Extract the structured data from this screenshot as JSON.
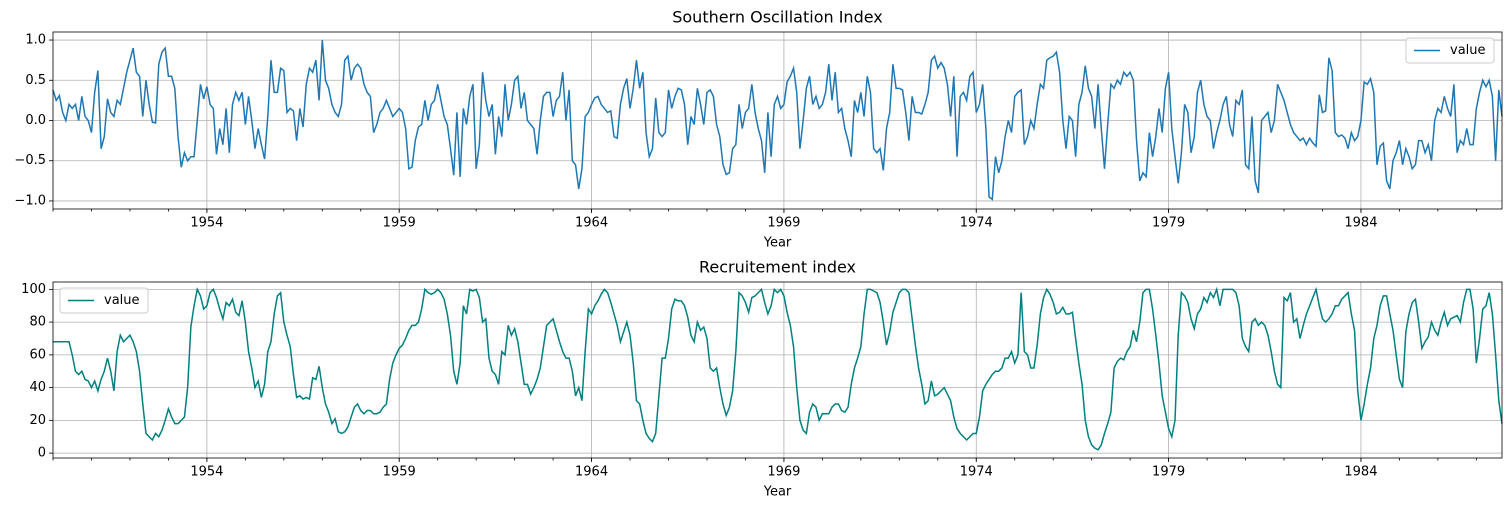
{
  "chart_data": [
    {
      "type": "line",
      "title": "Southern Oscillation Index",
      "xlabel": "Year",
      "xlim": [
        "1950-01",
        "1987-09"
      ],
      "xticks": [
        1954,
        1959,
        1964,
        1969,
        1974,
        1979,
        1984
      ],
      "ylim": [
        -1.1,
        1.1
      ],
      "yticks": [
        {
          "value": -1,
          "label": "−1.0"
        },
        {
          "value": -0.5,
          "label": "−0.5"
        },
        {
          "value": 0,
          "label": "0.0"
        },
        {
          "value": 0.5,
          "label": "0.5"
        },
        {
          "value": 1,
          "label": "1.0"
        }
      ],
      "grid": true,
      "legend": "upper right",
      "series": [
        {
          "name": "value",
          "color": "#1f77b4",
          "values": [
            0.38,
            0.25,
            0.31,
            0.1,
            0.0,
            0.2,
            0.15,
            0.2,
            0.0,
            0.3,
            0.05,
            0.0,
            -0.15,
            0.35,
            0.62,
            -0.35,
            -0.2,
            0.27,
            0.1,
            0.05,
            0.25,
            0.2,
            0.4,
            0.6,
            0.75,
            0.9,
            0.6,
            0.55,
            0.05,
            0.5,
            0.2,
            -0.02,
            -0.03,
            0.7,
            0.85,
            0.9,
            0.55,
            0.55,
            0.4,
            -0.2,
            -0.58,
            -0.4,
            -0.5,
            -0.45,
            -0.45,
            0.0,
            0.45,
            0.27,
            0.42,
            0.2,
            0.15,
            -0.42,
            -0.1,
            -0.3,
            0.15,
            -0.4,
            0.2,
            0.35,
            0.25,
            0.35,
            -0.05,
            0.3,
            0.0,
            -0.35,
            -0.1,
            -0.3,
            -0.48,
            0.05,
            0.75,
            0.35,
            0.35,
            0.65,
            0.62,
            0.1,
            0.15,
            0.12,
            -0.25,
            0.15,
            -0.08,
            0.45,
            0.65,
            0.6,
            0.75,
            0.25,
            1.0,
            0.5,
            0.4,
            0.2,
            0.1,
            0.05,
            0.2,
            0.75,
            0.8,
            0.5,
            0.65,
            0.7,
            0.65,
            0.45,
            0.35,
            0.3,
            -0.15,
            -0.05,
            0.1,
            0.15,
            0.25,
            0.15,
            0.05,
            0.1,
            0.15,
            0.1,
            -0.1,
            -0.6,
            -0.58,
            -0.25,
            -0.08,
            -0.05,
            0.25,
            0.0,
            0.2,
            0.25,
            0.45,
            0.25,
            0.05,
            -0.05,
            -0.35,
            -0.68,
            0.1,
            -0.7,
            0.15,
            -0.05,
            0.3,
            0.45,
            -0.6,
            -0.3,
            0.6,
            0.25,
            0.05,
            0.2,
            -0.42,
            0.05,
            -0.2,
            0.45,
            0.0,
            0.2,
            0.5,
            0.55,
            0.15,
            0.35,
            0.0,
            -0.05,
            -0.1,
            -0.42,
            0.0,
            0.3,
            0.35,
            0.35,
            0.05,
            0.25,
            0.3,
            0.6,
            0.0,
            0.38,
            -0.5,
            -0.55,
            -0.85,
            -0.6,
            0.05,
            0.1,
            0.2,
            0.28,
            0.3,
            0.2,
            0.15,
            0.1,
            0.12,
            -0.2,
            -0.22,
            0.2,
            0.4,
            0.52,
            0.15,
            0.4,
            0.75,
            0.4,
            0.6,
            -0.15,
            -0.45,
            -0.35,
            0.28,
            -0.15,
            -0.2,
            -0.15,
            0.38,
            0.15,
            0.3,
            0.4,
            0.38,
            0.2,
            -0.3,
            0.05,
            -0.05,
            0.4,
            0.2,
            -0.05,
            0.35,
            0.38,
            0.3,
            -0.05,
            -0.2,
            -0.55,
            -0.67,
            -0.65,
            -0.35,
            -0.3,
            0.2,
            -0.1,
            0.1,
            0.15,
            0.45,
            0.1,
            -0.1,
            -0.25,
            -0.65,
            0.1,
            -0.45,
            0.2,
            0.3,
            0.15,
            0.2,
            0.48,
            0.55,
            0.65,
            0.35,
            -0.35,
            0.0,
            0.4,
            0.55,
            0.2,
            0.3,
            0.15,
            0.2,
            0.35,
            0.7,
            0.25,
            0.6,
            0.1,
            0.15,
            -0.1,
            -0.25,
            -0.45,
            0.25,
            0.1,
            0.35,
            0.05,
            0.55,
            0.35,
            -0.35,
            -0.4,
            -0.35,
            -0.62,
            -0.1,
            0.1,
            0.7,
            0.4,
            0.4,
            0.38,
            0.1,
            -0.25,
            0.3,
            0.1,
            0.1,
            0.08,
            0.2,
            0.35,
            0.75,
            0.8,
            0.65,
            0.72,
            0.65,
            0.45,
            0.05,
            0.55,
            -0.45,
            0.3,
            0.35,
            0.25,
            0.55,
            0.6,
            0.1,
            0.2,
            0.45,
            -0.1,
            -0.95,
            -0.98,
            -0.45,
            -0.65,
            -0.5,
            -0.2,
            0.0,
            -0.15,
            0.3,
            0.35,
            0.38,
            -0.3,
            -0.2,
            0.0,
            -0.1,
            0.2,
            0.45,
            0.4,
            0.75,
            0.78,
            0.8,
            0.85,
            0.6,
            0.0,
            -0.35,
            0.05,
            0.0,
            -0.45,
            0.2,
            0.35,
            0.68,
            0.4,
            0.3,
            -0.1,
            0.45,
            -0.1,
            -0.6,
            -0.05,
            0.45,
            0.4,
            0.5,
            0.45,
            0.6,
            0.55,
            0.6,
            0.5,
            -0.25,
            -0.75,
            -0.65,
            -0.7,
            -0.15,
            -0.45,
            -0.2,
            0.15,
            -0.15,
            0.4,
            0.6,
            -0.1,
            -0.45,
            -0.78,
            -0.4,
            0.2,
            0.1,
            -0.4,
            -0.2,
            0.35,
            0.5,
            0.2,
            0.05,
            0.0,
            -0.35,
            -0.15,
            0.0,
            0.2,
            0.3,
            -0.05,
            -0.2,
            0.25,
            0.2,
            0.38,
            -0.55,
            -0.6,
            0.05,
            -0.75,
            -0.9,
            0.0,
            0.05,
            0.1,
            -0.15,
            0.0,
            0.45,
            0.35,
            0.25,
            0.1,
            -0.05,
            -0.15,
            -0.2,
            -0.25,
            -0.22,
            -0.3,
            -0.22,
            -0.28,
            -0.32,
            0.32,
            0.1,
            0.12,
            0.78,
            0.62,
            -0.15,
            -0.2,
            -0.18,
            -0.22,
            -0.35,
            -0.15,
            -0.25,
            -0.2,
            0.0,
            0.48,
            0.45,
            0.52,
            0.35,
            -0.55,
            -0.32,
            -0.28,
            -0.75,
            -0.85,
            -0.5,
            -0.4,
            -0.25,
            -0.55,
            -0.35,
            -0.45,
            -0.6,
            -0.55,
            -0.25,
            -0.25,
            -0.4,
            -0.3,
            -0.5,
            0.0,
            0.15,
            0.1,
            0.3,
            0.15,
            0.05,
            0.45,
            -0.4,
            -0.25,
            -0.3,
            -0.1,
            -0.3,
            -0.3,
            0.15,
            0.35,
            0.5,
            0.42,
            0.5,
            0.3,
            -0.5,
            0.38,
            0.05
          ]
        }
      ]
    },
    {
      "type": "line",
      "title": "Recruitement index",
      "xlabel": "Year",
      "xlim": [
        "1950-01",
        "1987-09"
      ],
      "xticks": [
        1954,
        1959,
        1964,
        1969,
        1974,
        1979,
        1984
      ],
      "ylim": [
        -3,
        104.5
      ],
      "yticks": [
        0,
        20,
        40,
        60,
        80,
        100
      ],
      "grid": true,
      "legend": "upper left",
      "series": [
        {
          "name": "value",
          "color": "#008080",
          "values": [
            68,
            68,
            68,
            68,
            68,
            68,
            60,
            50,
            48,
            50,
            45,
            44,
            40,
            44,
            38,
            45,
            50,
            58,
            50,
            38,
            62,
            72,
            68,
            70,
            72,
            68,
            62,
            50,
            30,
            12,
            10,
            8,
            12,
            10,
            14,
            20,
            27,
            22,
            18,
            18,
            20,
            22,
            40,
            77,
            90,
            100,
            96,
            88,
            90,
            98,
            100,
            95,
            88,
            82,
            92,
            90,
            94,
            86,
            84,
            93,
            80,
            62,
            52,
            40,
            44,
            34,
            42,
            62,
            68,
            85,
            96,
            98,
            80,
            72,
            65,
            48,
            34,
            35,
            33,
            34,
            33,
            46,
            45,
            53,
            40,
            30,
            25,
            18,
            21,
            13,
            12,
            13,
            16,
            22,
            28,
            30,
            26,
            24,
            26,
            26,
            24,
            24,
            25,
            28,
            30,
            45,
            55,
            60,
            64,
            66,
            70,
            75,
            78,
            78,
            80,
            88,
            100,
            98,
            97,
            98,
            100,
            98,
            94,
            85,
            72,
            50,
            42,
            55,
            90,
            85,
            100,
            99,
            100,
            95,
            80,
            82,
            58,
            50,
            48,
            42,
            62,
            60,
            78,
            72,
            76,
            68,
            55,
            42,
            42,
            36,
            40,
            45,
            52,
            65,
            78,
            80,
            82,
            75,
            68,
            62,
            58,
            58,
            50,
            35,
            40,
            32,
            62,
            88,
            85,
            90,
            93,
            97,
            100,
            98,
            92,
            85,
            78,
            68,
            74,
            80,
            72,
            55,
            32,
            30,
            20,
            12,
            9,
            7,
            12,
            35,
            58,
            58,
            70,
            88,
            94,
            93,
            93,
            90,
            83,
            72,
            68,
            80,
            75,
            77,
            70,
            52,
            50,
            52,
            40,
            30,
            23,
            28,
            38,
            62,
            98,
            96,
            92,
            86,
            95,
            96,
            98,
            100,
            92,
            85,
            90,
            100,
            98,
            100,
            96,
            86,
            78,
            65,
            40,
            20,
            14,
            12,
            25,
            30,
            28,
            20,
            24,
            24,
            24,
            28,
            30,
            30,
            26,
            25,
            28,
            42,
            52,
            58,
            65,
            85,
            100,
            100,
            99,
            98,
            92,
            80,
            66,
            74,
            86,
            92,
            98,
            100,
            100,
            98,
            82,
            66,
            52,
            42,
            30,
            32,
            44,
            35,
            36,
            38,
            40,
            36,
            32,
            22,
            15,
            12,
            10,
            8,
            10,
            12,
            12,
            22,
            38,
            42,
            45,
            48,
            50,
            50,
            52,
            58,
            58,
            62,
            55,
            60,
            98,
            62,
            60,
            52,
            52,
            66,
            85,
            95,
            100,
            97,
            92,
            85,
            86,
            89,
            85,
            85,
            86,
            70,
            55,
            42,
            20,
            10,
            5,
            3,
            2,
            5,
            12,
            18,
            25,
            52,
            56,
            58,
            57,
            62,
            65,
            75,
            68,
            80,
            98,
            100,
            100,
            88,
            72,
            55,
            35,
            25,
            15,
            10,
            20,
            72,
            98,
            96,
            92,
            82,
            76,
            85,
            88,
            95,
            92,
            98,
            95,
            100,
            90,
            100,
            100,
            100,
            100,
            98,
            90,
            70,
            65,
            62,
            80,
            82,
            78,
            80,
            78,
            72,
            62,
            50,
            42,
            40,
            95,
            93,
            98,
            80,
            82,
            70,
            78,
            85,
            90,
            95,
            100,
            90,
            82,
            80,
            82,
            85,
            90,
            90,
            94,
            96,
            98,
            85,
            75,
            38,
            20,
            30,
            42,
            52,
            70,
            78,
            90,
            96,
            96,
            85,
            75,
            60,
            45,
            40,
            74,
            85,
            92,
            94,
            80,
            64,
            68,
            71,
            80,
            75,
            72,
            80,
            86,
            78,
            82,
            83,
            84,
            80,
            92,
            100,
            100,
            88,
            55,
            70,
            88,
            90,
            98,
            85,
            60,
            32,
            18
          ]
        }
      ]
    }
  ]
}
